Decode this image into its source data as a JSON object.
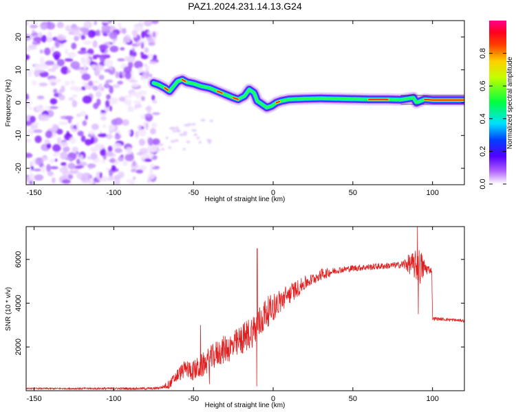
{
  "title": "PAZ1.2024.231.14.13.G24",
  "chart_data": [
    {
      "type": "heatmap",
      "xlabel": "Height of straight line (km)",
      "ylabel": "Frequency (Hz)",
      "xlim": [
        -155,
        120
      ],
      "ylim": [
        -25,
        25
      ],
      "x_ticks": [
        -150,
        -100,
        -50,
        0,
        50,
        100
      ],
      "y_ticks": [
        -20,
        -10,
        0,
        10,
        20
      ],
      "colorbar": {
        "label": "Normalized spectral amplitude",
        "ticks": [
          "0.0",
          "0.2",
          "0.4",
          "0.6",
          "0.8"
        ],
        "range": [
          0,
          1
        ],
        "colors": [
          "#ffffff",
          "#8a00ff",
          "#0000ff",
          "#00ffff",
          "#00ff00",
          "#ffff00",
          "#ff8000",
          "#ff0000",
          "#ff0080"
        ]
      },
      "ridge": {
        "x": [
          -75,
          -72,
          -68,
          -65,
          -60,
          -57,
          -54,
          -50,
          -45,
          -40,
          -35,
          -30,
          -25,
          -22,
          -18,
          -15,
          -12,
          -10,
          -7,
          -4,
          -1,
          2,
          5,
          10,
          20,
          30,
          40,
          50,
          60,
          70,
          80,
          88,
          90,
          95,
          100,
          110,
          120
        ],
        "y": [
          6,
          5.5,
          4.5,
          3.5,
          6.5,
          7,
          6.2,
          5.8,
          5,
          4.5,
          3.5,
          2.5,
          1.5,
          1,
          2,
          4,
          3,
          0.5,
          -0.5,
          -1.5,
          -1,
          0,
          0.5,
          1,
          1.2,
          1.3,
          1.2,
          1.1,
          1.0,
          1.0,
          0.9,
          1.5,
          0,
          1.0,
          0.8,
          0.8,
          0.8
        ]
      },
      "noise_region_x": [
        -155,
        -73
      ]
    },
    {
      "type": "line",
      "xlabel": "Height of straight line (km)",
      "ylabel": "SNR (10 * v/v)",
      "xlim": [
        -155,
        120
      ],
      "ylim": [
        0,
        7500
      ],
      "x_ticks": [
        -150,
        -100,
        -50,
        0,
        50,
        100
      ],
      "y_ticks": [
        2000,
        4000,
        6000
      ],
      "series": [
        {
          "color": "#e02020",
          "envelope": {
            "x": [
              -155,
              -75,
              -70,
              -65,
              -60,
              -55,
              -50,
              -45,
              -40,
              -35,
              -30,
              -25,
              -20,
              -15,
              -10,
              -5,
              0,
              5,
              10,
              20,
              30,
              40,
              50,
              60,
              70,
              80,
              85,
              90,
              95,
              99.5,
              100,
              110,
              120
            ],
            "y": [
              100,
              100,
              150,
              300,
              700,
              1000,
              900,
              1100,
              1400,
              1700,
              1900,
              2000,
              2300,
              2600,
              2900,
              3500,
              3800,
              4100,
              4400,
              4900,
              5300,
              5500,
              5600,
              5650,
              5700,
              5750,
              5800,
              5700,
              5600,
              5500,
              3300,
              3250,
              3200
            ]
          },
          "noise": {
            "x": [
              -155,
              -70,
              -60,
              -45,
              -20,
              -8,
              0,
              20,
              40,
              80,
              88,
              92,
              96,
              100,
              120
            ],
            "amplitude": [
              30,
              60,
              400,
              700,
              900,
              1000,
              800,
              400,
              150,
              150,
              600,
              900,
              300,
              80,
              60
            ]
          },
          "spikes": [
            {
              "x": -10,
              "y": 6500
            },
            {
              "x": -10.3,
              "y": 200
            },
            {
              "x": 90.5,
              "y": 7500
            },
            {
              "x": 91,
              "y": 3500
            },
            {
              "x": -45.5,
              "y": 3000
            },
            {
              "x": -40,
              "y": 300
            }
          ]
        }
      ]
    }
  ]
}
